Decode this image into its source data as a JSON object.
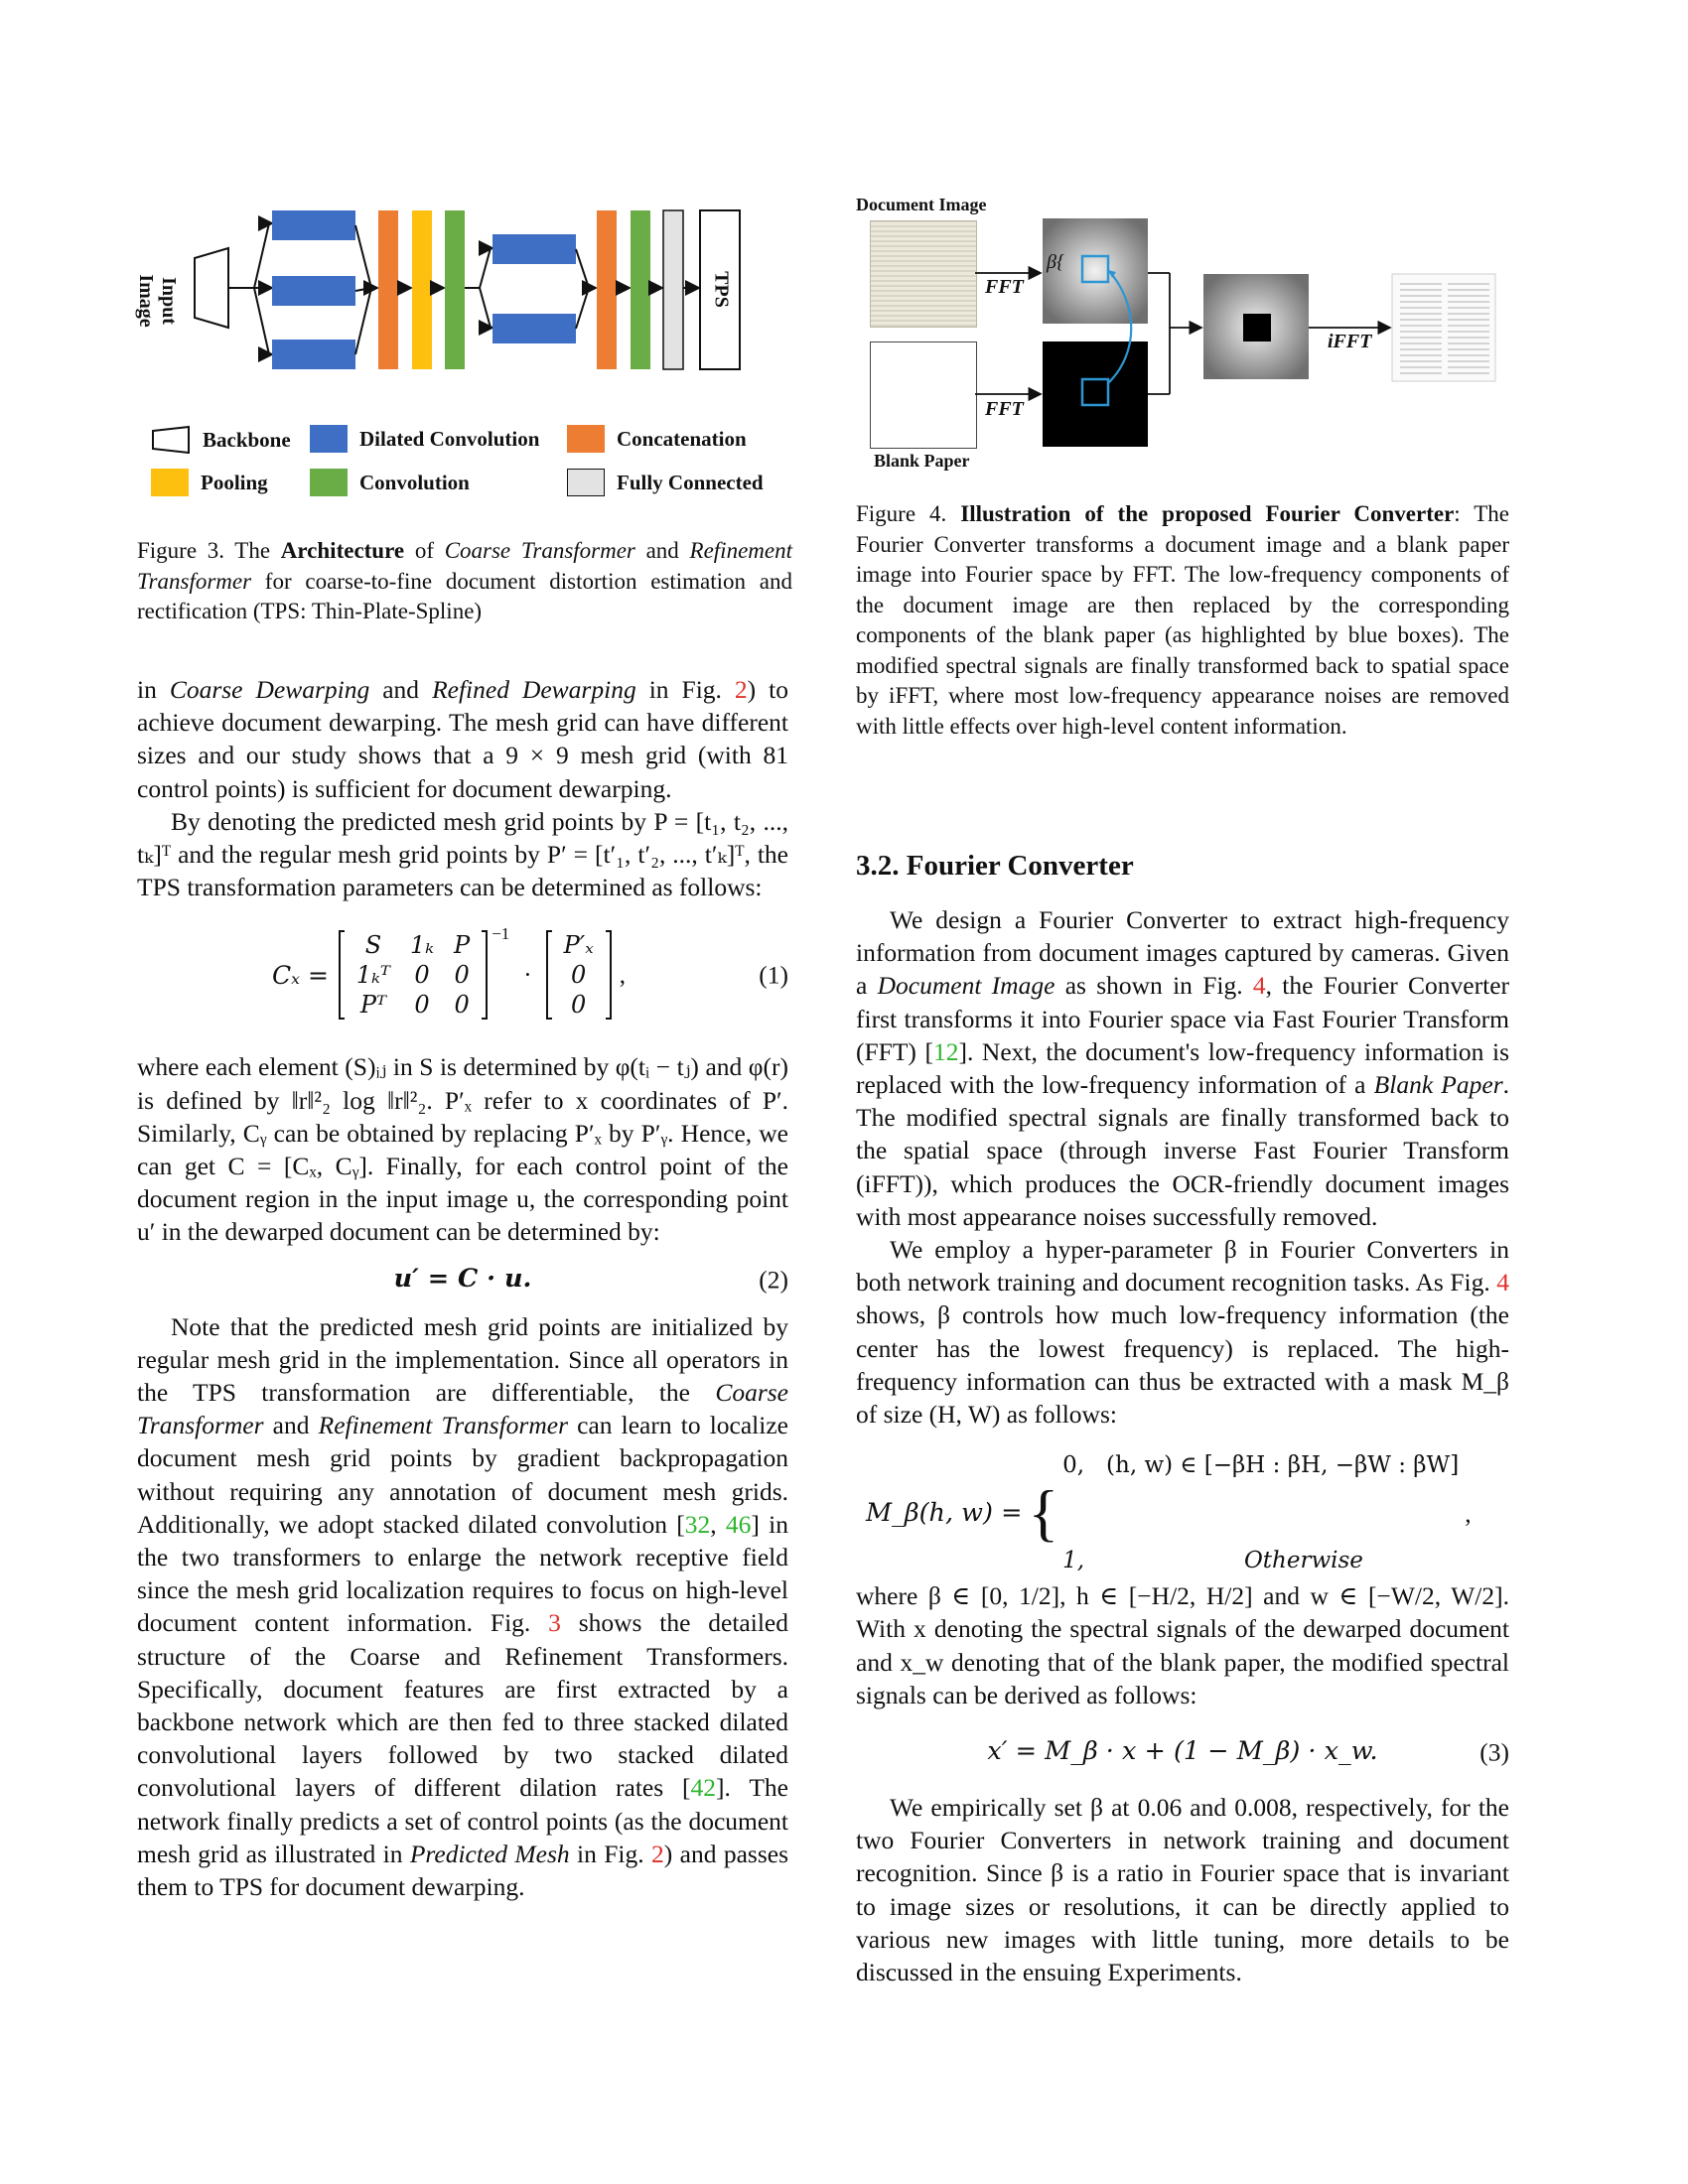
{
  "fig3": {
    "input_label": "Input Image",
    "tps_label": "TPS",
    "legend": [
      {
        "label": "Backbone",
        "color": "#ffffff"
      },
      {
        "label": "Dilated Convolution",
        "color": "#3f6fc5"
      },
      {
        "label": "Concatenation",
        "color": "#ec7d33"
      },
      {
        "label": "Pooling",
        "color": "#fdc00f"
      },
      {
        "label": "Convolution",
        "color": "#6aac45"
      },
      {
        "label": "Fully Connected",
        "color": "#e3e3e3"
      }
    ],
    "caption_prefix": "Figure 3. The ",
    "caption_bold1": "Architecture",
    "caption_mid1": " of ",
    "caption_it1": "Coarse Transformer",
    "caption_mid2": " and ",
    "caption_it2": "Refinement Transformer",
    "caption_end": " for coarse-to-fine document distortion estimation and rectification (TPS: Thin-Plate-Spline)"
  },
  "fig4": {
    "doc_label": "Document Image",
    "blank_label": "Blank Paper",
    "fft1": "FFT",
    "fft2": "FFT",
    "ifft": "iFFT",
    "beta": "β",
    "caption_prefix": "Figure 4. ",
    "caption_bold": "Illustration of the proposed Fourier Converter",
    "caption_rest": ": The Fourier Converter transforms a document image and a blank paper image into Fourier space by FFT. The low-frequency components of the document image are then replaced by the corresponding components of the blank paper (as highlighted by blue boxes). The modified spectral signals are finally transformed back to spatial space by iFFT, where most low-frequency appearance noises are removed with little effects over high-level content information."
  },
  "left": {
    "p1a": "in ",
    "p1b": "Coarse Dewarping",
    "p1c": " and ",
    "p1d": "Refined Dewarping",
    "p1e": " in Fig. ",
    "p1ref": "2",
    "p1f": ") to achieve document dewarping. The mesh grid can have different sizes and our study shows that a 9 × 9 mesh grid (with 81 control points) is sufficient for document dewarping.",
    "p2": "By denoting the predicted mesh grid points by P = [t₁, t₂, ..., tₖ]ᵀ and the regular mesh grid points by P′ = [t′₁, t′₂, ..., t′ₖ]ᵀ, the TPS transformation parameters can be determined as follows:",
    "eq1_lhs": "Cₓ =",
    "eq1_m1": [
      [
        "S",
        "1ₖ",
        "P"
      ],
      [
        "1ₖᵀ",
        "0",
        "0"
      ],
      [
        "Pᵀ",
        "0",
        "0"
      ]
    ],
    "eq1_exp": "−1",
    "eq1_dot": "·",
    "eq1_m2": [
      [
        "P′ₓ"
      ],
      [
        "0"
      ],
      [
        "0"
      ]
    ],
    "eq1_num": "(1)",
    "p3": "where each element (S)ᵢⱼ in S is determined by φ(tᵢ − tⱼ) and φ(r) is defined by ‖r‖²₂ log ‖r‖²₂. P′ₓ refer to x coordinates of P′. Similarly, Cᵧ can be obtained by replacing P′ₓ by P′ᵧ. Hence, we can get C = [Cₓ, Cᵧ]. Finally, for each control point of the document region in the input image u, the corresponding point u′ in the dewarped document can be determined by:",
    "eq2": "u′ = C · u.",
    "eq2_num": "(2)",
    "p4a": "Note that the predicted mesh grid points are initialized by regular mesh grid in the implementation. Since all operators in the TPS transformation are differentiable, the ",
    "p4b": "Coarse Transformer",
    "p4c": " and ",
    "p4d": "Refinement Transformer",
    "p4e": " can learn to localize document mesh grid points by gradient backpropagation without requiring any annotation of document mesh grids. Additionally, we adopt stacked dilated convolution [",
    "p4ref1": "32",
    "p4comma": ", ",
    "p4ref2": "46",
    "p4f": "] in the two transformers to enlarge the network receptive field since the mesh grid localization requires to focus on high-level document content information. Fig. ",
    "p4ref3": "3",
    "p4g": " shows the detailed structure of the Coarse and Refinement Transformers. Specifically, document features are first extracted by a backbone network which are then fed to three stacked dilated convolutional layers followed by two stacked dilated convolutional layers of different dilation rates [",
    "p4ref4": "42",
    "p4h": "]. The network finally predicts a set of control points (as the document mesh grid as illustrated in ",
    "p4i": "Predicted Mesh",
    "p4j": " in Fig. ",
    "p4ref5": "2",
    "p4k": ") and passes them to TPS for document dewarping."
  },
  "right": {
    "section": "3.2. Fourier Converter",
    "p1a": "We design a Fourier Converter to extract high-frequency information from document images captured by cameras. Given a ",
    "p1b": "Document Image",
    "p1c": " as shown in Fig. ",
    "p1ref1": "4",
    "p1d": ", the Fourier Converter first transforms it into Fourier space via Fast Fourier Transform (FFT) [",
    "p1ref2": "12",
    "p1e": "]. Next, the document's low-frequency information is replaced with the low-frequency information of a ",
    "p1f": "Blank Paper",
    "p1g": ". The modified spectral signals are finally transformed back to the spatial space (through inverse Fast Fourier Transform (iFFT)), which produces the OCR-friendly document images with most appearance noises successfully removed.",
    "p2a": "We employ a hyper-parameter β in Fourier Converters in both network training and document recognition tasks. As Fig. ",
    "p2ref": "4",
    "p2b": " shows, β controls how much low-frequency information (the center has the lowest frequency) is replaced. The high-frequency information can thus be extracted with a mask M_β of size (H, W) as follows:",
    "eq_lhs": "M_β(h, w) =",
    "eq_case1": "0,   (h, w) ∈ [−βH : βH, −βW : βW]",
    "eq_case2": "1,                      Otherwise",
    "eq_comma": ",",
    "p3": "where β ∈ [0, 1/2], h ∈ [−H/2, H/2] and w ∈ [−W/2, W/2]. With x denoting the spectral signals of the dewarped document and x_w denoting that of the blank paper, the modified spectral signals can be derived as follows:",
    "eq3": "x′ = M_β · x + (1 − M_β) · x_w.",
    "eq3_num": "(3)",
    "p4": "We empirically set β at 0.06 and 0.008, respectively, for the two Fourier Converters in network training and document recognition. Since β is a ratio in Fourier space that is invariant to image sizes or resolutions, it can be directly applied to various new images with little tuning, more details to be discussed in the ensuing Experiments."
  }
}
